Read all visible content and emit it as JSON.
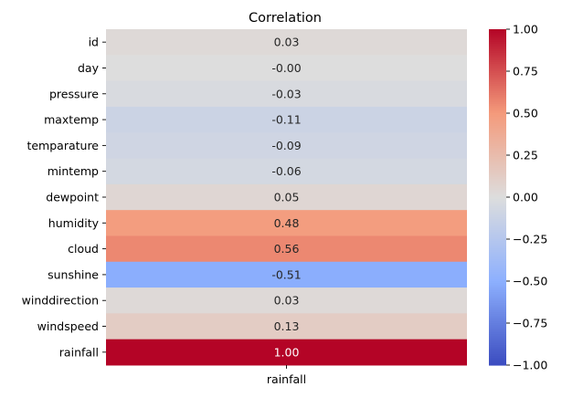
{
  "chart_data": {
    "type": "heatmap",
    "title": "Correlation",
    "xlabel": "",
    "ylabel": "",
    "columns": [
      "rainfall"
    ],
    "rows": [
      "id",
      "day",
      "pressure",
      "maxtemp",
      "temparature",
      "mintemp",
      "dewpoint",
      "humidity",
      "cloud",
      "sunshine",
      "winddirection",
      "windspeed",
      "rainfall"
    ],
    "values": [
      0.03,
      -0.0,
      -0.03,
      -0.11,
      -0.09,
      -0.06,
      0.05,
      0.48,
      0.56,
      -0.51,
      0.03,
      0.13,
      1.0
    ],
    "annotations": [
      "0.03",
      "-0.00",
      "-0.03",
      "-0.11",
      "-0.09",
      "-0.06",
      "0.05",
      "0.48",
      "0.56",
      "-0.51",
      "0.03",
      "0.13",
      "1.00"
    ],
    "colormap": "coolwarm",
    "vmin": -1.0,
    "vmax": 1.0,
    "colorbar": {
      "ticks": [
        1.0,
        0.75,
        0.5,
        0.25,
        0.0,
        -0.25,
        -0.5,
        -0.75,
        -1.0
      ],
      "tick_labels": [
        "1.00",
        "0.75",
        "0.50",
        "0.25",
        "0.00",
        "−0.25",
        "−0.50",
        "−0.75",
        "−1.00"
      ],
      "placement": "right"
    },
    "grid": false
  }
}
